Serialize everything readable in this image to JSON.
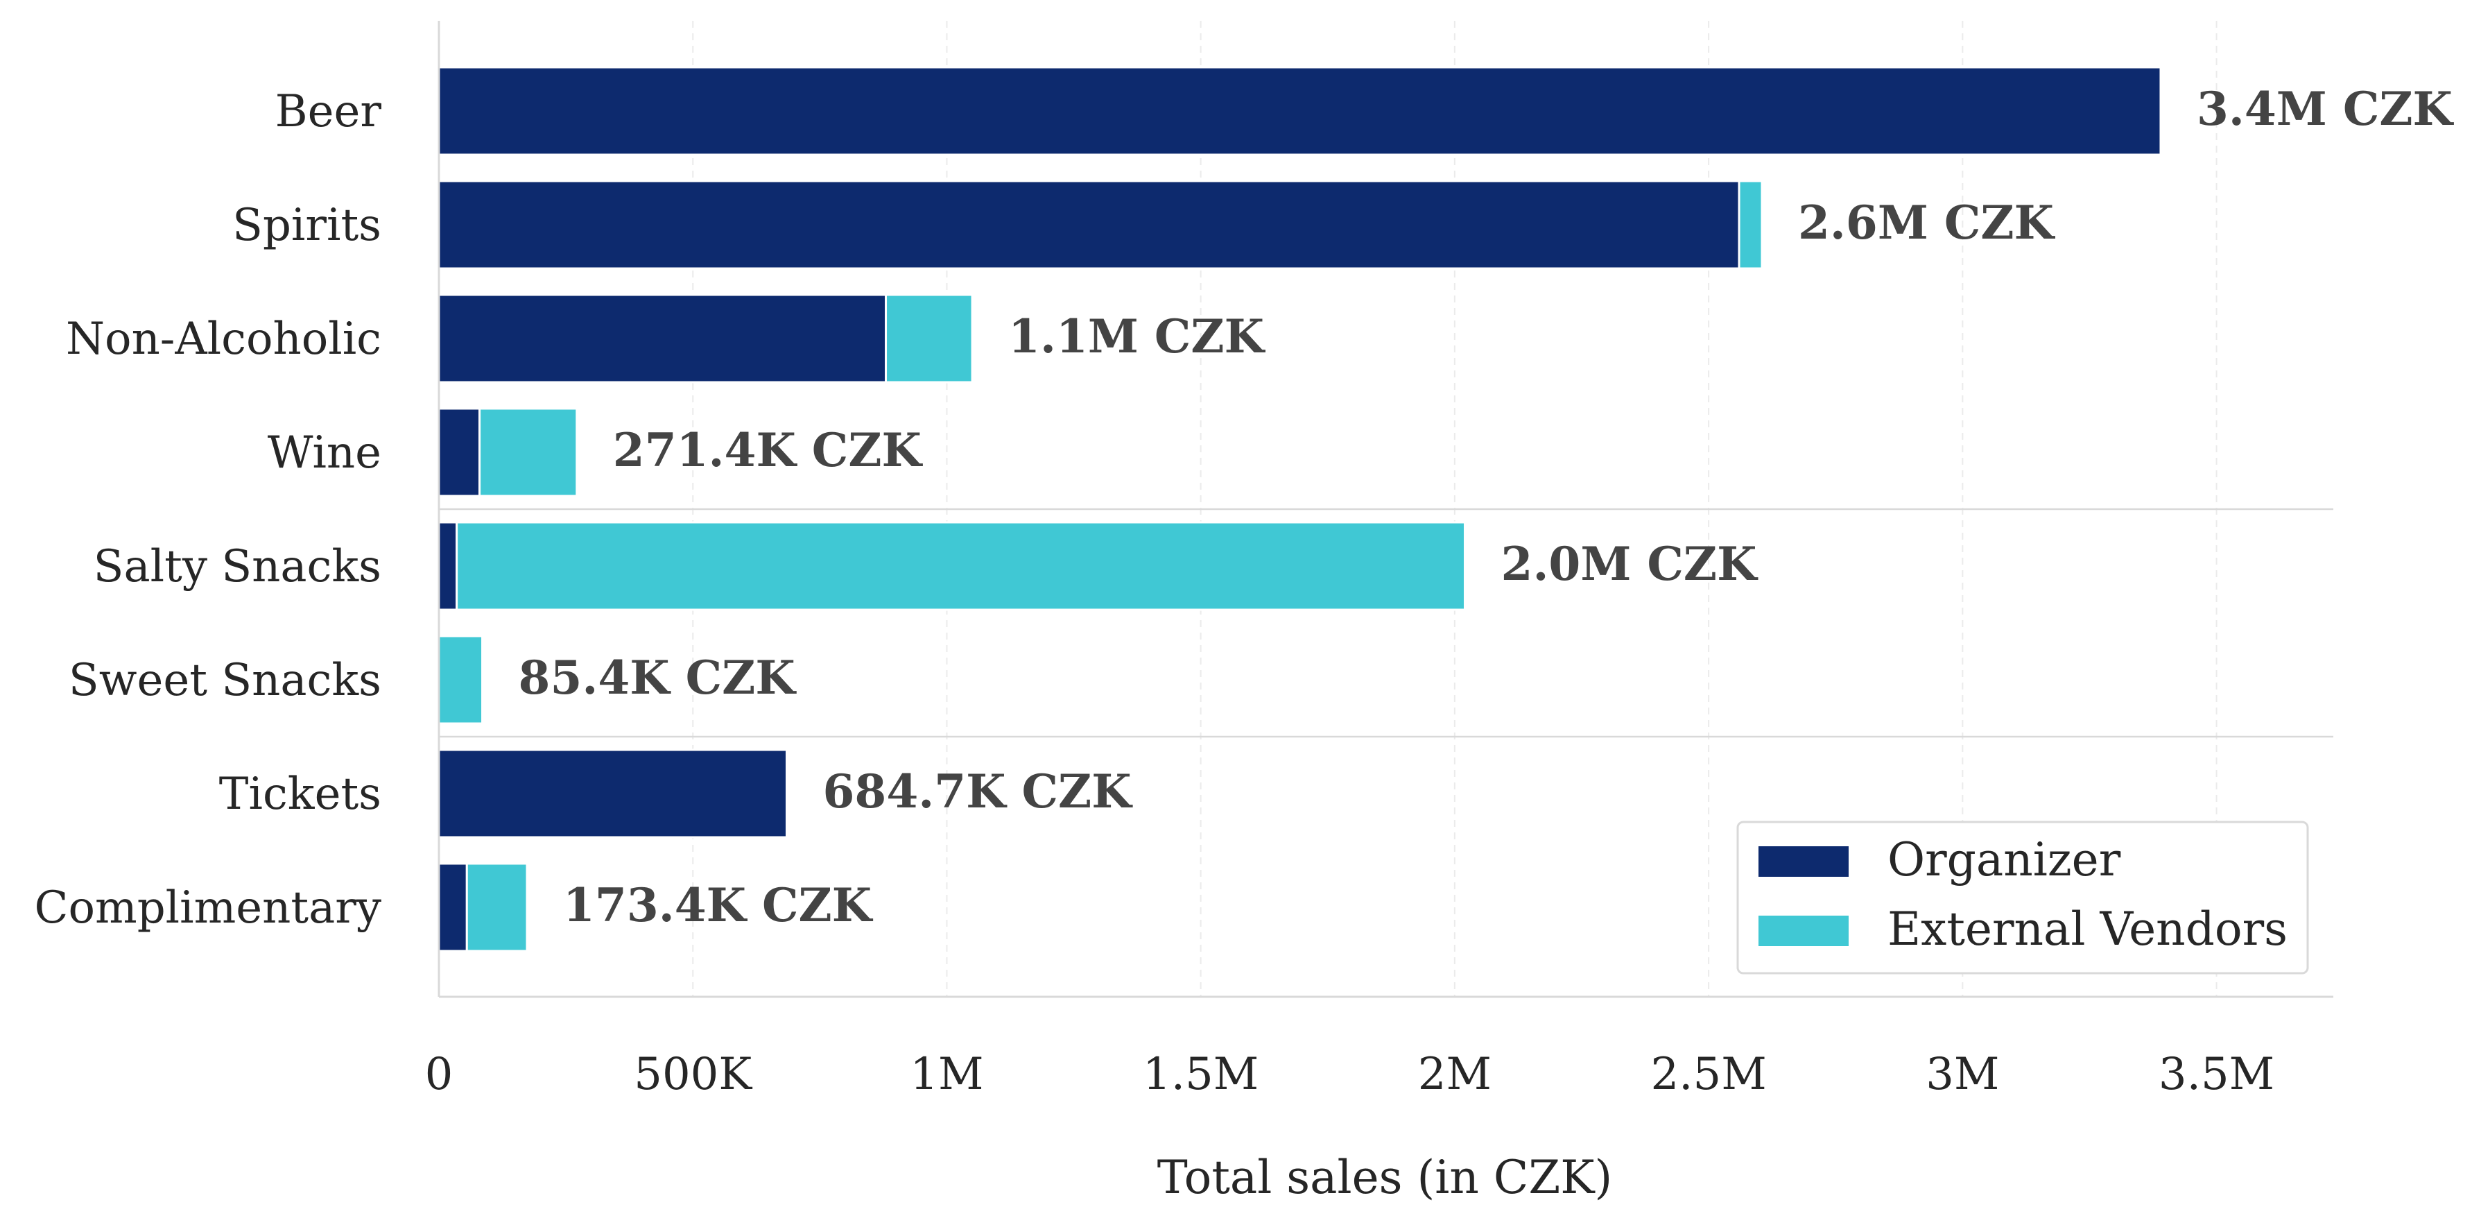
{
  "chart_data": {
    "type": "bar",
    "orientation": "horizontal",
    "stacked": true,
    "categories": [
      "Beer",
      "Spirits",
      "Non-Alcoholic",
      "Wine",
      "Salty Snacks",
      "Sweet Snacks",
      "Tickets",
      "Complimentary"
    ],
    "series": [
      {
        "name": "Organizer",
        "color": "#0d2a6e",
        "values": [
          3390000,
          2560000,
          880000,
          80000,
          35000,
          0,
          684700,
          55000
        ]
      },
      {
        "name": "External Vendors",
        "color": "#40c8d4",
        "values": [
          0,
          45000,
          170000,
          191400,
          1985000,
          85400,
          0,
          118400
        ]
      }
    ],
    "total_labels": [
      "3.4M CZK",
      "2.6M CZK",
      "1.1M CZK",
      "271.4K CZK",
      "2.0M CZK",
      "85.4K CZK",
      "684.7K CZK",
      "173.4K CZK"
    ],
    "xlabel": "Total sales (in CZK)",
    "ylabel": "",
    "xlim": [
      0,
      3730000
    ],
    "x_ticks": [
      0,
      500000,
      1000000,
      1500000,
      2000000,
      2500000,
      3000000,
      3500000
    ],
    "x_tick_labels": [
      "0",
      "500K",
      "1M",
      "1.5M",
      "2M",
      "2.5M",
      "3M",
      "3.5M"
    ],
    "group_separators_after": [
      "Wine",
      "Sweet Snacks"
    ],
    "grid": "x-dashed-light",
    "legend_position": "bottom-right"
  }
}
